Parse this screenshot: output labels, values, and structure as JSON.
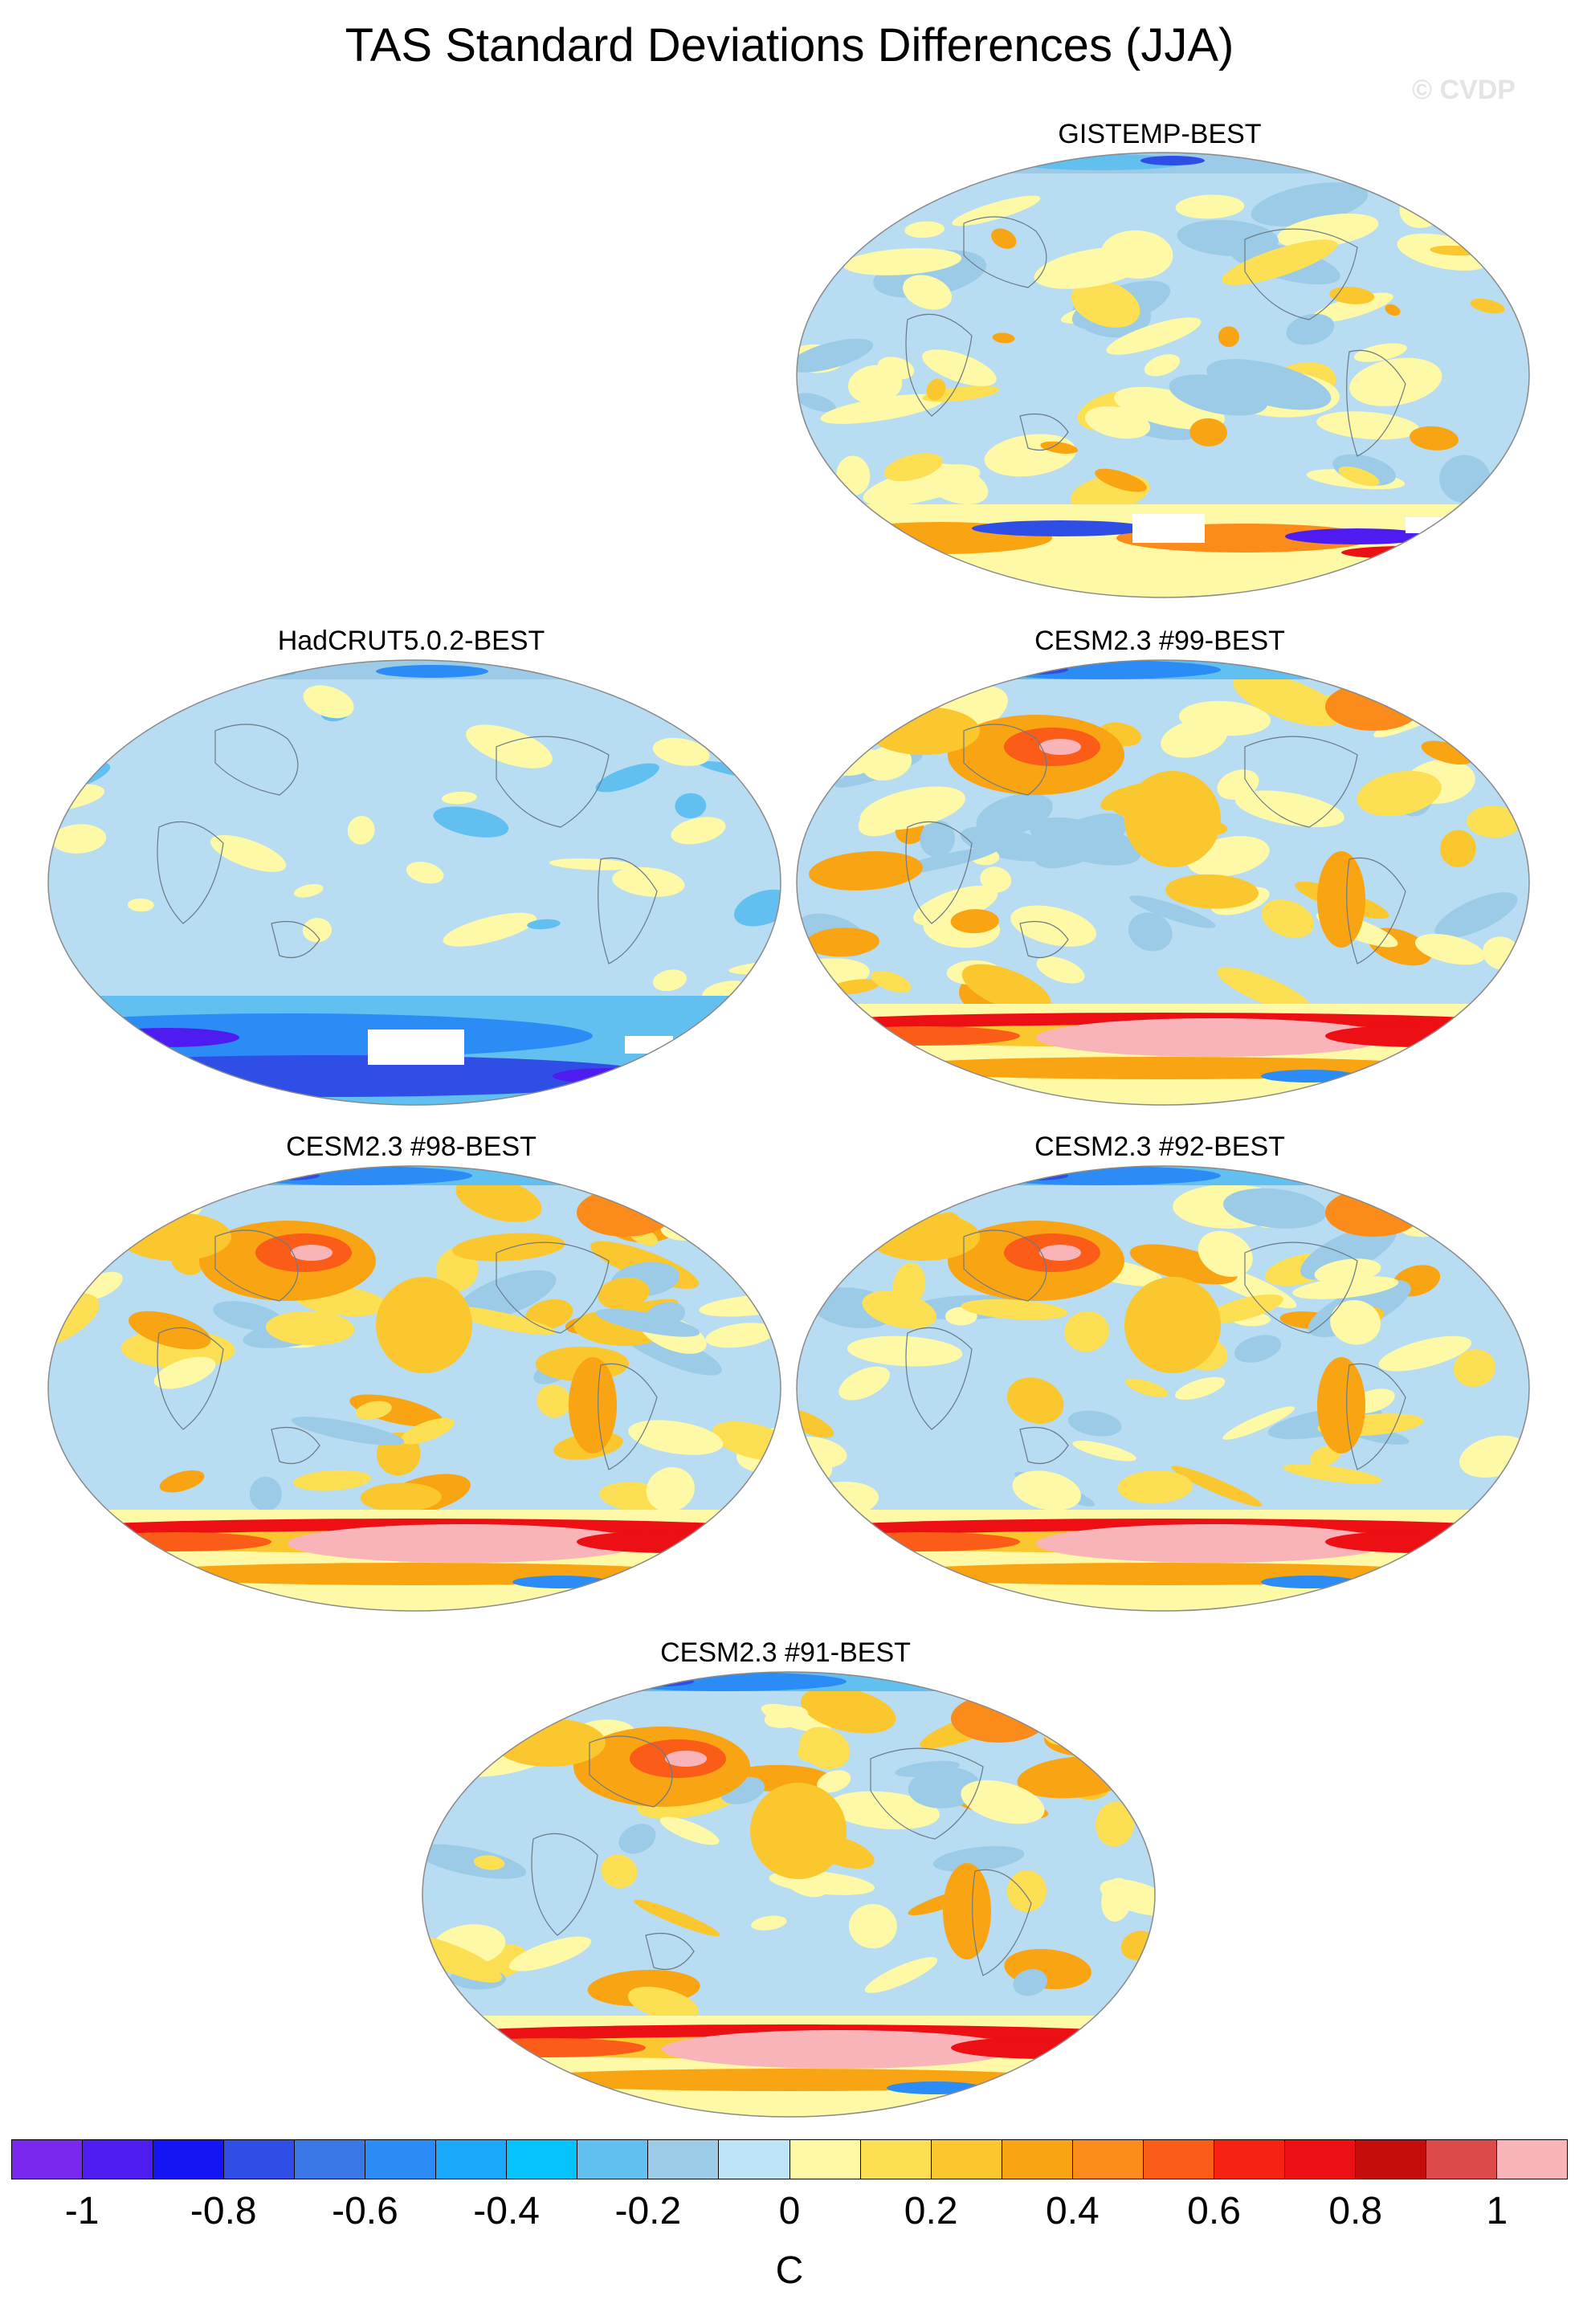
{
  "title": "TAS Standard Deviations Differences (JJA)",
  "watermark": "© CVDP",
  "colors": {
    "ocean_base": "#b8dcf2",
    "land_outline": "#6b7a86"
  },
  "panels": [
    {
      "id": "gistemp",
      "label": "GISTEMP-BEST",
      "icon": "globe-map-icon",
      "pattern": "mixed"
    },
    {
      "id": "hadcrut",
      "label": "HadCRUT5.0.2-BEST",
      "icon": "globe-map-icon",
      "pattern": "cool"
    },
    {
      "id": "cesm99",
      "label": "CESM2.3 #99-BEST",
      "icon": "globe-map-icon",
      "pattern": "warm"
    },
    {
      "id": "cesm98",
      "label": "CESM2.3 #98-BEST",
      "icon": "globe-map-icon",
      "pattern": "warm"
    },
    {
      "id": "cesm92",
      "label": "CESM2.3 #92-BEST",
      "icon": "globe-map-icon",
      "pattern": "warm"
    },
    {
      "id": "cesm91",
      "label": "CESM2.3 #91-BEST",
      "icon": "globe-map-icon",
      "pattern": "warm"
    }
  ],
  "colorbar": {
    "unit": "C",
    "tick_labels": [
      "-1",
      "-0.8",
      "-0.6",
      "-0.4",
      "-0.2",
      "0",
      "0.2",
      "0.4",
      "0.6",
      "0.8",
      "1"
    ],
    "colors": [
      "#7a28f0",
      "#4e1cf0",
      "#1414f5",
      "#2e4ee6",
      "#3a78e8",
      "#2a8cf4",
      "#1aa8fa",
      "#06c2fa",
      "#62c0f0",
      "#9ccbe8",
      "#bfe3f7",
      "#fef9a6",
      "#fddf53",
      "#fbc72e",
      "#f9a413",
      "#fb8b1a",
      "#fb5c17",
      "#f72214",
      "#ec0f14",
      "#c40c0c",
      "#dd4a4a",
      "#f8b4b8"
    ]
  }
}
